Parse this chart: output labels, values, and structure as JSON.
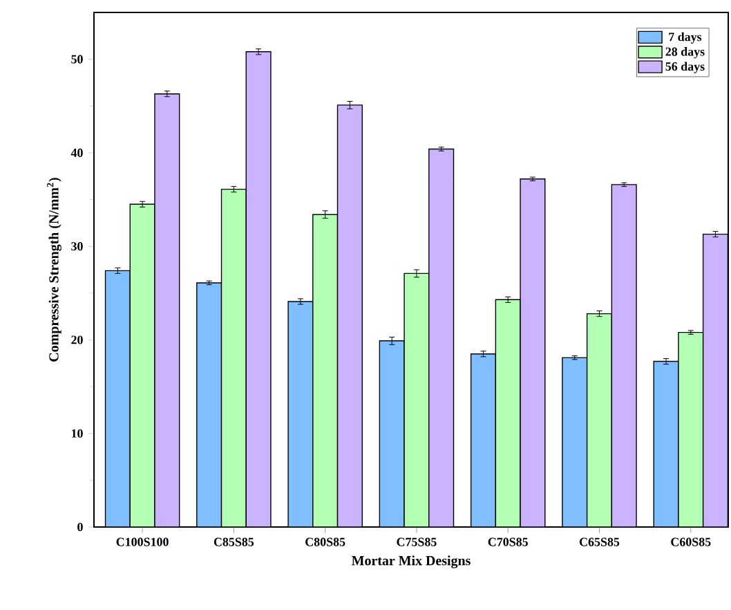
{
  "chart_data": {
    "type": "bar",
    "xlabel": "Mortar Mix Designs",
    "ylabel": "Compressive Strength (N/mm$^{2}$)",
    "categories": [
      "C100S100",
      "C85S85",
      "C80S85",
      "C75S85",
      "C70S85",
      "C65S85",
      "C60S85"
    ],
    "series": [
      {
        "name": "7 days",
        "color": "#80bfff",
        "values": [
          27.4,
          26.1,
          24.1,
          19.9,
          18.5,
          18.1,
          17.7
        ],
        "errors": [
          0.3,
          0.2,
          0.3,
          0.4,
          0.3,
          0.2,
          0.3
        ]
      },
      {
        "name": "28 days",
        "color": "#b3ffb3",
        "values": [
          34.5,
          36.1,
          33.4,
          27.1,
          24.3,
          22.8,
          20.8
        ],
        "errors": [
          0.3,
          0.3,
          0.4,
          0.4,
          0.3,
          0.3,
          0.2
        ]
      },
      {
        "name": "56 days",
        "color": "#cbb3ff",
        "values": [
          46.3,
          50.8,
          45.1,
          40.4,
          37.2,
          36.6,
          31.3
        ],
        "errors": [
          0.3,
          0.3,
          0.4,
          0.2,
          0.2,
          0.2,
          0.3
        ]
      }
    ],
    "ylim": [
      0,
      55
    ],
    "yticks": [
      0,
      10,
      20,
      30,
      40,
      50
    ],
    "grid": false,
    "legend": "top right"
  }
}
